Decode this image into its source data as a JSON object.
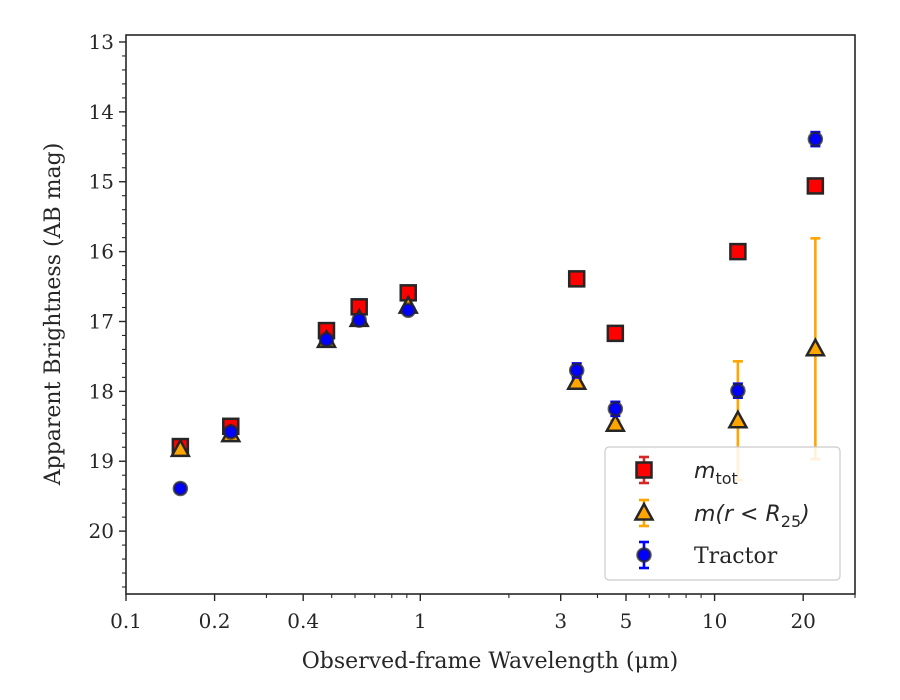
{
  "chart_data": {
    "type": "scatter",
    "xlabel": "Observed-frame Wavelength (μm)",
    "ylabel": "Apparent Brightness (AB mag)",
    "x_scale": "log",
    "xlim": [
      0.1,
      30
    ],
    "ylim": [
      20.9,
      12.9
    ],
    "y_inverted": true,
    "x_ticks": [
      {
        "value": 0.1,
        "label": "0.1"
      },
      {
        "value": 0.2,
        "label": "0.2"
      },
      {
        "value": 0.4,
        "label": "0.4"
      },
      {
        "value": 1,
        "label": "1"
      },
      {
        "value": 3,
        "label": "3"
      },
      {
        "value": 5,
        "label": "5"
      },
      {
        "value": 10,
        "label": "10"
      },
      {
        "value": 20,
        "label": "20"
      }
    ],
    "y_ticks": [
      {
        "value": 13,
        "label": "13"
      },
      {
        "value": 14,
        "label": "14"
      },
      {
        "value": 15,
        "label": "15"
      },
      {
        "value": 16,
        "label": "16"
      },
      {
        "value": 17,
        "label": "17"
      },
      {
        "value": 18,
        "label": "18"
      },
      {
        "value": 19,
        "label": "19"
      },
      {
        "value": 20,
        "label": "20"
      }
    ],
    "grid": false,
    "legend_position": "bottom-right",
    "series": [
      {
        "name": "m_tot",
        "marker": "square",
        "color": "#ff0000",
        "edge": "#262626",
        "errcolor": "#d62728",
        "points": [
          {
            "x": 0.153,
            "y": 18.79,
            "err": 0.05
          },
          {
            "x": 0.227,
            "y": 18.5,
            "err": 0.04
          },
          {
            "x": 0.48,
            "y": 17.13,
            "err": 0.03
          },
          {
            "x": 0.62,
            "y": 16.79,
            "err": 0.03
          },
          {
            "x": 0.91,
            "y": 16.59,
            "err": 0.03
          },
          {
            "x": 3.4,
            "y": 16.39,
            "err": 0.02
          },
          {
            "x": 4.6,
            "y": 17.17,
            "err": 0.02
          },
          {
            "x": 12.0,
            "y": 16.0,
            "err": 0.02
          },
          {
            "x": 22.0,
            "y": 15.06,
            "err": 0.02
          }
        ]
      },
      {
        "name": "m(r < R25)",
        "marker": "triangle",
        "color": "#ffa500",
        "edge": "#262626",
        "errcolor": "#ffa500",
        "points": [
          {
            "x": 0.153,
            "y": 18.83,
            "err": 0.03
          },
          {
            "x": 0.227,
            "y": 18.62,
            "err": 0.03
          },
          {
            "x": 0.48,
            "y": 17.27,
            "err": 0.03
          },
          {
            "x": 0.62,
            "y": 16.97,
            "err": 0.03
          },
          {
            "x": 0.91,
            "y": 16.78,
            "err": 0.03
          },
          {
            "x": 3.4,
            "y": 17.87,
            "err": 0.04
          },
          {
            "x": 4.6,
            "y": 18.47,
            "err": 0.05
          },
          {
            "x": 12.0,
            "y": 18.42,
            "err": 0.85
          },
          {
            "x": 22.0,
            "y": 17.39,
            "err": 1.58
          }
        ]
      },
      {
        "name": "Tractor",
        "marker": "circle",
        "color": "#0000ff",
        "edge": "#262626",
        "errcolor": "#0000ff",
        "points": [
          {
            "x": 0.153,
            "y": 19.39,
            "err": 0.05
          },
          {
            "x": 0.227,
            "y": 18.58,
            "err": 0.05
          },
          {
            "x": 0.48,
            "y": 17.26,
            "err": 0.04
          },
          {
            "x": 0.62,
            "y": 16.98,
            "err": 0.06
          },
          {
            "x": 0.91,
            "y": 16.84,
            "err": 0.04
          },
          {
            "x": 3.4,
            "y": 17.7,
            "err": 0.1
          },
          {
            "x": 4.6,
            "y": 18.25,
            "err": 0.1
          },
          {
            "x": 12.0,
            "y": 17.99,
            "err": 0.1
          },
          {
            "x": 22.0,
            "y": 14.39,
            "err": 0.1
          }
        ]
      }
    ]
  }
}
